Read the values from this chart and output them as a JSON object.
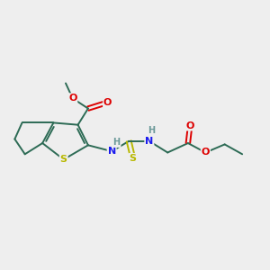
{
  "background_color": "#eeeeee",
  "fig_size": [
    3.0,
    3.0
  ],
  "dpi": 100,
  "colors": {
    "bond": "#2d6b55",
    "S_color": "#b8b800",
    "N_color": "#1a1aee",
    "O_color": "#dd0000",
    "H_color": "#6b9999",
    "bg": "#eeeeee"
  },
  "xlim": [
    0.0,
    6.5
  ],
  "ylim": [
    0.5,
    4.0
  ],
  "figsize": [
    3.0,
    3.0
  ]
}
